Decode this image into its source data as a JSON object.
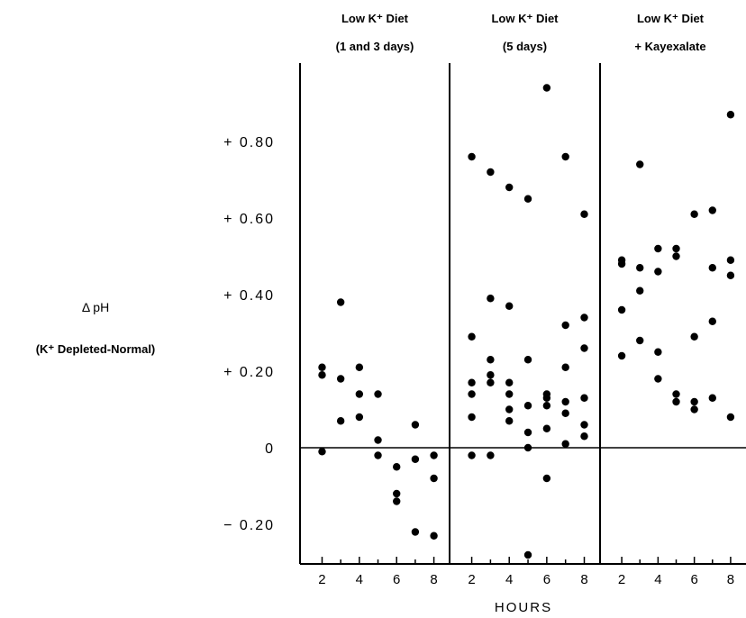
{
  "chart_data": {
    "type": "scatter",
    "title": "",
    "xlabel": "HOURS",
    "ylabel": "Δ pH",
    "ylabel_sub": "(K⁺ Depleted-Normal)",
    "ylim": [
      -0.3,
      0.99
    ],
    "y_ticks": [
      {
        "value": 0.8,
        "label": "+ 0.80"
      },
      {
        "value": 0.6,
        "label": "+ 0.60"
      },
      {
        "value": 0.4,
        "label": "+ 0.40"
      },
      {
        "value": 0.2,
        "label": "+ 0.20"
      },
      {
        "value": 0,
        "label": "0"
      },
      {
        "value": -0.2,
        "label": "− 0.20"
      }
    ],
    "x_ticks": [
      2,
      4,
      6,
      8
    ],
    "xlim": [
      1.3,
      8.6
    ],
    "grid": false,
    "panels": [
      {
        "title_line1": "Low K⁺ Diet",
        "title_line2": "(1 and 3 days)",
        "points": [
          [
            2,
            0.21
          ],
          [
            2,
            0.19
          ],
          [
            2,
            -0.01
          ],
          [
            3,
            0.38
          ],
          [
            3,
            0.18
          ],
          [
            3,
            0.07
          ],
          [
            4,
            0.21
          ],
          [
            4,
            0.14
          ],
          [
            4,
            0.08
          ],
          [
            5,
            0.14
          ],
          [
            5,
            0.02
          ],
          [
            5,
            -0.02
          ],
          [
            6,
            -0.05
          ],
          [
            6,
            -0.12
          ],
          [
            6,
            -0.14
          ],
          [
            7,
            0.06
          ],
          [
            7,
            -0.03
          ],
          [
            7,
            -0.22
          ],
          [
            8,
            -0.02
          ],
          [
            8,
            -0.08
          ],
          [
            8,
            -0.23
          ]
        ]
      },
      {
        "title_line1": "Low K⁺ Diet",
        "title_line2": "(5 days)",
        "points": [
          [
            2,
            0.76
          ],
          [
            2,
            0.29
          ],
          [
            2,
            0.17
          ],
          [
            2,
            0.14
          ],
          [
            2,
            0.08
          ],
          [
            2,
            -0.02
          ],
          [
            3,
            0.72
          ],
          [
            3,
            0.39
          ],
          [
            3,
            0.23
          ],
          [
            3,
            0.19
          ],
          [
            3,
            0.17
          ],
          [
            3,
            -0.02
          ],
          [
            4,
            0.68
          ],
          [
            4,
            0.37
          ],
          [
            4,
            0.17
          ],
          [
            4,
            0.14
          ],
          [
            4,
            0.1
          ],
          [
            4,
            0.07
          ],
          [
            5,
            0.65
          ],
          [
            5,
            0.23
          ],
          [
            5,
            0.11
          ],
          [
            5,
            0.04
          ],
          [
            5,
            0.0
          ],
          [
            5,
            -0.28
          ],
          [
            6,
            0.94
          ],
          [
            6,
            0.14
          ],
          [
            6,
            0.13
          ],
          [
            6,
            0.11
          ],
          [
            6,
            0.05
          ],
          [
            6,
            -0.08
          ],
          [
            7,
            0.76
          ],
          [
            7,
            0.32
          ],
          [
            7,
            0.21
          ],
          [
            7,
            0.12
          ],
          [
            7,
            0.09
          ],
          [
            7,
            0.01
          ],
          [
            8,
            0.61
          ],
          [
            8,
            0.34
          ],
          [
            8,
            0.26
          ],
          [
            8,
            0.13
          ],
          [
            8,
            0.06
          ],
          [
            8,
            0.03
          ]
        ]
      },
      {
        "title_line1": "Low K⁺ Diet",
        "title_line2": "+ Kayexalate",
        "points": [
          [
            2,
            0.49
          ],
          [
            2,
            0.48
          ],
          [
            2,
            0.36
          ],
          [
            2,
            0.24
          ],
          [
            3,
            0.74
          ],
          [
            3,
            0.47
          ],
          [
            3,
            0.41
          ],
          [
            3,
            0.28
          ],
          [
            4,
            0.52
          ],
          [
            4,
            0.46
          ],
          [
            4,
            0.25
          ],
          [
            4,
            0.18
          ],
          [
            5,
            0.52
          ],
          [
            5,
            0.5
          ],
          [
            5,
            0.14
          ],
          [
            5,
            0.12
          ],
          [
            6,
            0.61
          ],
          [
            6,
            0.29
          ],
          [
            6,
            0.12
          ],
          [
            6,
            0.1
          ],
          [
            7,
            0.62
          ],
          [
            7,
            0.47
          ],
          [
            7,
            0.33
          ],
          [
            7,
            0.13
          ],
          [
            8,
            0.87
          ],
          [
            8,
            0.49
          ],
          [
            8,
            0.45
          ],
          [
            8,
            0.08
          ]
        ]
      }
    ]
  }
}
